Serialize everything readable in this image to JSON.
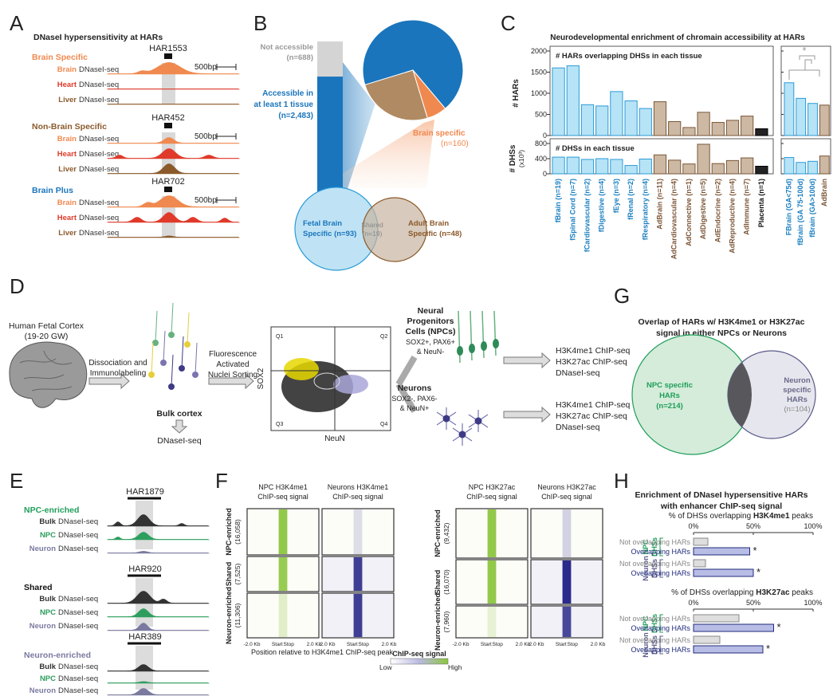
{
  "panel_labels": [
    "A",
    "B",
    "C",
    "D",
    "E",
    "F",
    "G",
    "H"
  ],
  "a": {
    "title": "DNaseI hypersensitivity at HARs",
    "scale": "500bp",
    "groups": [
      {
        "name": "Brain Specific",
        "har": "HAR1553",
        "tracks": [
          [
            "Brain",
            "DNaseI-seq"
          ],
          [
            "Heart",
            "DNaseI-seq"
          ],
          [
            "Liver",
            "DNaseI-seq"
          ]
        ]
      },
      {
        "name": "Non-Brain Specific",
        "har": "HAR452",
        "tracks": [
          [
            "Brain",
            "DNaseI-seq"
          ],
          [
            "Heart",
            "DNaseI-seq"
          ],
          [
            "Liver",
            "DNaseI-seq"
          ]
        ]
      },
      {
        "name": "Brain Plus",
        "har": "HAR702",
        "tracks": [
          [
            "Brain",
            "DNaseI-seq"
          ],
          [
            "Heart",
            "DNaseI-seq"
          ],
          [
            "Liver",
            "DNaseI-seq"
          ]
        ]
      }
    ]
  },
  "b": {
    "not_accessible": [
      "Not accessible",
      "(n=688)"
    ],
    "accessible": [
      "Accessible in",
      "at least 1 tissue",
      "(n=2,483)"
    ],
    "bar_values": [
      688,
      2483
    ],
    "pie_values": [
      1703,
      160,
      620
    ],
    "brain_specific": [
      "Brain specific",
      "(n=160)"
    ],
    "venn": {
      "left": [
        "Fetal Brain",
        "Specific (n=93)"
      ],
      "shared": [
        "Shared",
        "(n=19)"
      ],
      "right": [
        "Adult Brain",
        "Specific (n=48)"
      ]
    }
  },
  "c": {
    "title": "Neurodevelopmental enrichment of chromain accessibility at HARs",
    "categories": [
      "fBrain (n=19)",
      "fSpinal Cord (n=7)",
      "fCardiovascular (n=2)",
      "fDigestive (n=4)",
      "fEye (n=3)",
      "fRenal (n=2)",
      "fRespiratory (n=4)",
      "AdBrain (n=11)",
      "AdCardiovascular (n=4)",
      "AdConnective (n=1)",
      "AdDigestive (n=5)",
      "AdEndocrine (n=2)",
      "AdReproductive (n=4)",
      "AdImmune (n=7)",
      "Placenta (n=1)"
    ],
    "colors": [
      "#b7e3f6",
      "#b7e3f6",
      "#b7e3f6",
      "#b7e3f6",
      "#b7e3f6",
      "#b7e3f6",
      "#b7e3f6",
      "#cdb9a3",
      "#cdb9a3",
      "#cdb9a3",
      "#cdb9a3",
      "#cdb9a3",
      "#cdb9a3",
      "#cdb9a3",
      "#222222"
    ],
    "right_categories": [
      "FBrain (GA<75d)",
      "fBrain (GA 75-100d)",
      "fBrain (GA>100d)",
      "AdBrain"
    ],
    "right_colors": [
      "#b7e3f6",
      "#b7e3f6",
      "#b7e3f6",
      "#cdb9a3"
    ],
    "significance": "*",
    "top": {
      "title": "# HARs overlapping DHSs in each tissue",
      "ylabel": [
        "# HARs"
      ],
      "ylim": [
        0,
        2000
      ],
      "yticks": [
        0,
        500,
        1000,
        1500,
        2000
      ],
      "values": [
        1600,
        1650,
        730,
        700,
        1040,
        820,
        640,
        800,
        330,
        190,
        550,
        310,
        360,
        460,
        160
      ],
      "right_values": [
        1250,
        880,
        760,
        720
      ]
    },
    "bottom": {
      "title": "# DHSs in each tissue",
      "ylabel": [
        "# DHSs",
        "(x10³)"
      ],
      "ylim": [
        0,
        800
      ],
      "yticks": [
        0,
        400,
        800
      ],
      "values": [
        440,
        440,
        380,
        400,
        380,
        220,
        390,
        500,
        360,
        260,
        780,
        270,
        350,
        420,
        200
      ],
      "right_values": [
        430,
        300,
        330,
        470
      ]
    }
  },
  "d": {
    "source": [
      "Human Fetal Cortex",
      "(19-20 GW)"
    ],
    "step1": [
      "Dissociation and",
      "Immunolabeling"
    ],
    "bulk": "Bulk cortex",
    "bulk_assay": "DNaseI-seq",
    "step2": [
      "Fluorescence",
      "Activated",
      "Nuclei Sorting"
    ],
    "facs": {
      "y": "SOX2",
      "x": "NeuN",
      "quadrants": [
        "Q1",
        "Q2",
        "Q3",
        "Q4"
      ]
    },
    "npc": {
      "name": [
        "Neural",
        "Progenitors",
        "Cells (NPCs)"
      ],
      "markers": [
        "SOX2+, PAX6+",
        "& NeuN-"
      ],
      "assays": [
        "H3K4me1 ChIP-seq",
        "H3K27ac ChIP-seq",
        "DNaseI-seq"
      ]
    },
    "neuron": {
      "name": [
        "Neurons"
      ],
      "markers": [
        "SOX2-, PAX6-",
        "& NeuN+"
      ],
      "assays": [
        "H3K4me1 ChIP-seq",
        "H3K27ac ChIP-seq",
        "DNaseI-seq"
      ]
    }
  },
  "e": {
    "groups": [
      {
        "name": "NPC-enriched",
        "har": "HAR1879",
        "tracks": [
          [
            "Bulk",
            "DNaseI-seq"
          ],
          [
            "NPC",
            "DNaseI-seq"
          ],
          [
            "Neuron",
            "DNaseI-seq"
          ]
        ]
      },
      {
        "name": "Shared",
        "har": "HAR920",
        "tracks": [
          [
            "Bulk",
            "DNaseI-seq"
          ],
          [
            "NPC",
            "DNaseI-seq"
          ],
          [
            "Neuron",
            "DNaseI-seq"
          ]
        ]
      },
      {
        "name": "Neuron-enriched",
        "har": "HAR389",
        "tracks": [
          [
            "Bulk",
            "DNaseI-seq"
          ],
          [
            "NPC",
            "DNaseI-seq"
          ],
          [
            "Neuron",
            "DNaseI-seq"
          ]
        ]
      }
    ]
  },
  "f": {
    "heatmaps": [
      [
        "NPC H3K4me1",
        "ChIP-seq signal"
      ],
      [
        "Neurons H3K4me1",
        "ChIP-seq signal"
      ],
      [
        "NPC H3K27ac",
        "ChIP-seq signal"
      ],
      [
        "Neurons H3K27ac",
        "ChIP-seq signal"
      ]
    ],
    "row_sets": [
      [
        [
          "NPC-enriched",
          "(16,058)"
        ],
        [
          "Shared",
          "(7,525)"
        ],
        [
          "Neuron-enriched",
          "(11,306)"
        ]
      ],
      [
        [
          "NPC-enriched",
          "(9,432)"
        ],
        [
          "Shared",
          "(16,070)"
        ],
        [
          "Neuron-enriched",
          "(7,960)"
        ]
      ]
    ],
    "xticks": [
      "-2.0 Kb",
      "Start",
      "Stop",
      "2.0 Kb"
    ],
    "xlabel": "Position relative to H3K4me1 ChIP-seq peak",
    "legend": {
      "title": "ChIP-seq signal",
      "low": "Low",
      "high": "High"
    }
  },
  "g": {
    "title": [
      "Overlap of HARs w/ H3K4me1 or H3K27ac",
      "signal in either NPCs or Neurons"
    ],
    "left": [
      "NPC specific",
      "HARs",
      "(n=214)"
    ],
    "right": [
      "Neuron",
      "specific",
      "HARs",
      "(n=104)"
    ]
  },
  "h": {
    "title": [
      "Enrichment of DNaseI hypersensitive HARs",
      "with enhancer ChIP-seq signal"
    ],
    "charts": [
      {
        "title": [
          "% of DHSs overlapping ",
          "H3K4me1",
          " peaks"
        ],
        "xlim": [
          0,
          100
        ],
        "xticks": [
          {
            "value": 0,
            "label": "0%"
          },
          {
            "value": 50,
            "label": "50%"
          },
          {
            "value": 100,
            "label": "100%"
          }
        ],
        "groups": [
          {
            "label": [
              "NPC",
              "DHSs"
            ],
            "bars": [
              {
                "name": "Not overlapping HARs",
                "value": 12
              },
              {
                "name": "Overlapping HARs",
                "value": 47,
                "annotation": "*"
              }
            ]
          },
          {
            "label": [
              "Neuron",
              "DHSs"
            ],
            "bars": [
              {
                "name": "Not overlapping HARs",
                "value": 10
              },
              {
                "name": "Overlapping HARs",
                "value": 50,
                "annotation": "*"
              }
            ]
          }
        ]
      },
      {
        "title": [
          "% of DHSs overlapping ",
          "H3K27ac",
          " peaks"
        ],
        "xlim": [
          0,
          100
        ],
        "xticks": [
          {
            "value": 0,
            "label": "0%"
          },
          {
            "value": 50,
            "label": "50%"
          },
          {
            "value": 100,
            "label": "100%"
          }
        ],
        "groups": [
          {
            "label": [
              "NPC",
              "DHSs"
            ],
            "bars": [
              {
                "name": "Not overlapping HARs",
                "value": 38
              },
              {
                "name": "Overlapping HARs",
                "value": 67,
                "annotation": "*"
              }
            ]
          },
          {
            "label": [
              "Neuron",
              "DHSs"
            ],
            "bars": [
              {
                "name": "Not overlapping HARs",
                "value": 22
              },
              {
                "name": "Overlapping HARs",
                "value": 58,
                "annotation": "*"
              }
            ]
          }
        ]
      }
    ]
  }
}
